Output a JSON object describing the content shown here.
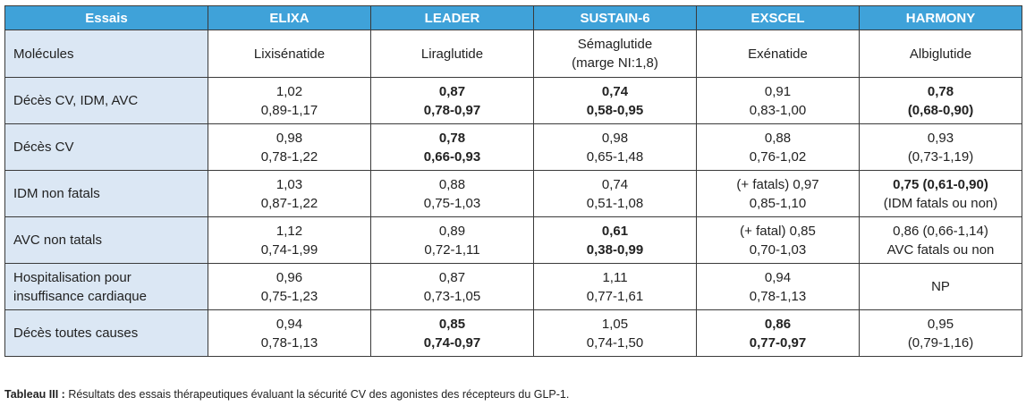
{
  "table": {
    "header": {
      "first": "Essais",
      "trials": [
        "ELIXA",
        "LEADER",
        "SUSTAIN-6",
        "EXSCEL",
        "HARMONY"
      ]
    },
    "rows": [
      {
        "label": [
          "Molécules"
        ],
        "cells": [
          {
            "lines": [
              "Lixisénatide"
            ],
            "bold": [
              false
            ]
          },
          {
            "lines": [
              "Liraglutide"
            ],
            "bold": [
              false
            ]
          },
          {
            "lines": [
              "Sémaglutide",
              "(marge NI:1,8)"
            ],
            "bold": [
              false,
              false
            ]
          },
          {
            "lines": [
              "Exénatide"
            ],
            "bold": [
              false
            ]
          },
          {
            "lines": [
              "Albiglutide"
            ],
            "bold": [
              false
            ]
          }
        ]
      },
      {
        "label": [
          "Décès CV, IDM, AVC"
        ],
        "cells": [
          {
            "lines": [
              "1,02",
              "0,89-1,17"
            ],
            "bold": [
              false,
              false
            ]
          },
          {
            "lines": [
              "0,87",
              "0,78-0,97"
            ],
            "bold": [
              true,
              true
            ]
          },
          {
            "lines": [
              "0,74",
              "0,58-0,95"
            ],
            "bold": [
              true,
              true
            ]
          },
          {
            "lines": [
              "0,91",
              "0,83-1,00"
            ],
            "bold": [
              false,
              false
            ]
          },
          {
            "lines": [
              "0,78",
              "(0,68-0,90)"
            ],
            "bold": [
              true,
              true
            ]
          }
        ]
      },
      {
        "label": [
          "Décès CV"
        ],
        "cells": [
          {
            "lines": [
              "0,98",
              "0,78-1,22"
            ],
            "bold": [
              false,
              false
            ]
          },
          {
            "lines": [
              "0,78",
              "0,66-0,93"
            ],
            "bold": [
              true,
              true
            ]
          },
          {
            "lines": [
              "0,98",
              "0,65-1,48"
            ],
            "bold": [
              false,
              false
            ]
          },
          {
            "lines": [
              "0,88",
              "0,76-1,02"
            ],
            "bold": [
              false,
              false
            ]
          },
          {
            "lines": [
              "0,93",
              "(0,73-1,19)"
            ],
            "bold": [
              false,
              false
            ]
          }
        ]
      },
      {
        "label": [
          "IDM non fatals"
        ],
        "cells": [
          {
            "lines": [
              "1,03",
              "0,87-1,22"
            ],
            "bold": [
              false,
              false
            ]
          },
          {
            "lines": [
              "0,88",
              "0,75-1,03"
            ],
            "bold": [
              false,
              false
            ]
          },
          {
            "lines": [
              "0,74",
              "0,51-1,08"
            ],
            "bold": [
              false,
              false
            ]
          },
          {
            "lines": [
              "(+ fatals) 0,97",
              "0,85-1,10"
            ],
            "bold": [
              false,
              false
            ]
          },
          {
            "lines": [
              "0,75 (0,61-0,90)",
              "(IDM fatals ou non)"
            ],
            "bold": [
              true,
              false
            ]
          }
        ]
      },
      {
        "label": [
          "AVC non tatals"
        ],
        "cells": [
          {
            "lines": [
              "1,12",
              "0,74-1,99"
            ],
            "bold": [
              false,
              false
            ]
          },
          {
            "lines": [
              "0,89",
              "0,72-1,11"
            ],
            "bold": [
              false,
              false
            ]
          },
          {
            "lines": [
              "0,61",
              "0,38-0,99"
            ],
            "bold": [
              true,
              true
            ]
          },
          {
            "lines": [
              "(+ fatal) 0,85",
              "0,70-1,03"
            ],
            "bold": [
              false,
              false
            ]
          },
          {
            "lines": [
              "0,86 (0,66-1,14)",
              "AVC fatals ou non"
            ],
            "bold": [
              false,
              false
            ]
          }
        ]
      },
      {
        "label": [
          "Hospitalisation pour",
          "insuffisance cardiaque"
        ],
        "cells": [
          {
            "lines": [
              "0,96",
              "0,75-1,23"
            ],
            "bold": [
              false,
              false
            ]
          },
          {
            "lines": [
              "0,87",
              "0,73-1,05"
            ],
            "bold": [
              false,
              false
            ]
          },
          {
            "lines": [
              "1,11",
              "0,77-1,61"
            ],
            "bold": [
              false,
              false
            ]
          },
          {
            "lines": [
              "0,94",
              "0,78-1,13"
            ],
            "bold": [
              false,
              false
            ]
          },
          {
            "lines": [
              "NP"
            ],
            "bold": [
              false
            ]
          }
        ]
      },
      {
        "label": [
          "Décès toutes causes"
        ],
        "cells": [
          {
            "lines": [
              "0,94",
              "0,78-1,13"
            ],
            "bold": [
              false,
              false
            ]
          },
          {
            "lines": [
              "0,85",
              "0,74-0,97"
            ],
            "bold": [
              true,
              true
            ]
          },
          {
            "lines": [
              "1,05",
              "0,74-1,50"
            ],
            "bold": [
              false,
              false
            ]
          },
          {
            "lines": [
              "0,86",
              "0,77-0,97"
            ],
            "bold": [
              true,
              true
            ]
          },
          {
            "lines": [
              "0,95",
              "(0,79-1,16)"
            ],
            "bold": [
              false,
              false
            ]
          }
        ]
      }
    ]
  },
  "caption": {
    "label": "Tableau III :",
    "text": " Résultats des essais thérapeutiques évaluant la sécurité CV des agonistes des récepteurs du GLP-1."
  },
  "colors": {
    "header_bg": "#3fa2d9",
    "row_label_bg": "#dbe7f4",
    "border": "#3a3a3a"
  }
}
